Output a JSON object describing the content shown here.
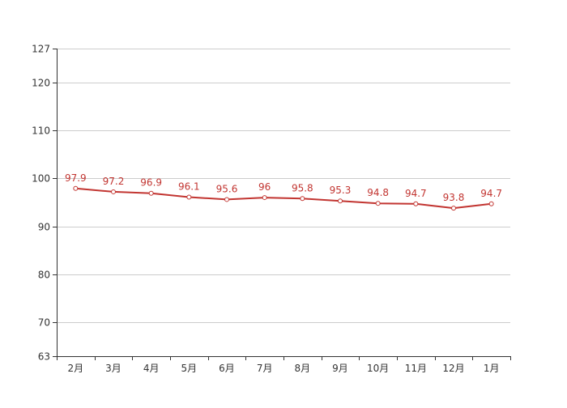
{
  "chart_data": {
    "type": "line",
    "title": "",
    "xlabel": "",
    "ylabel": "",
    "categories": [
      "2月",
      "3月",
      "4月",
      "5月",
      "6月",
      "7月",
      "8月",
      "9月",
      "10月",
      "11月",
      "12月",
      "1月"
    ],
    "series": [
      {
        "values": [
          97.9,
          97.2,
          96.9,
          96.1,
          95.6,
          96,
          95.8,
          95.3,
          94.8,
          94.7,
          93.8,
          94.7
        ],
        "labels": [
          "97.9",
          "97.2",
          "96.9",
          "96.1",
          "95.6",
          "96",
          "95.8",
          "95.3",
          "94.8",
          "94.7",
          "93.8",
          "94.7"
        ],
        "color": "#c23531"
      }
    ],
    "yticks": [
      63,
      70,
      80,
      90,
      100,
      110,
      120,
      127
    ],
    "ytick_labels": [
      "63",
      "70",
      "80",
      "90",
      "100",
      "110",
      "120",
      "127"
    ],
    "ylim": [
      63,
      127
    ],
    "grid": true,
    "legend": "none",
    "axis_color": "#333333",
    "grid_color": "#cccccc",
    "label_color": "#333333"
  }
}
